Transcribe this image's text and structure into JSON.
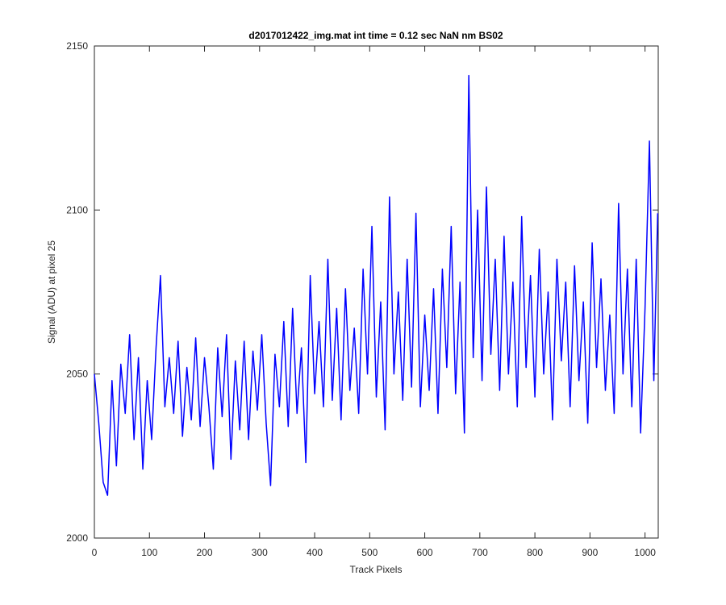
{
  "chart_data": {
    "type": "line",
    "title": "d2017012422_img.mat int time = 0.12 sec  NaN nm BS02",
    "x_label": "Track Pixels",
    "y_label": "Signal (ADU) at pixel 25",
    "x": [
      0,
      8,
      16,
      24,
      32,
      40,
      48,
      56,
      64,
      72,
      80,
      88,
      96,
      104,
      112,
      120,
      128,
      136,
      144,
      152,
      160,
      168,
      176,
      184,
      192,
      200,
      208,
      216,
      224,
      232,
      240,
      248,
      256,
      264,
      272,
      280,
      288,
      296,
      304,
      312,
      320,
      328,
      336,
      344,
      352,
      360,
      368,
      376,
      384,
      392,
      400,
      408,
      416,
      424,
      432,
      440,
      448,
      456,
      464,
      472,
      480,
      488,
      496,
      504,
      512,
      520,
      528,
      536,
      544,
      552,
      560,
      568,
      576,
      584,
      592,
      600,
      608,
      616,
      624,
      632,
      640,
      648,
      656,
      664,
      672,
      680,
      688,
      696,
      704,
      712,
      720,
      728,
      736,
      744,
      752,
      760,
      768,
      776,
      784,
      792,
      800,
      808,
      816,
      824,
      832,
      840,
      848,
      856,
      864,
      872,
      880,
      888,
      896,
      904,
      912,
      920,
      928,
      936,
      944,
      952,
      960,
      968,
      976,
      984,
      992,
      1000,
      1008,
      1016,
      1023
    ],
    "series": [
      {
        "name": "signal",
        "color": "#0000ff",
        "values": [
          2050,
          2035,
          2017,
          2013,
          2048,
          2022,
          2053,
          2038,
          2062,
          2030,
          2055,
          2021,
          2048,
          2030,
          2058,
          2080,
          2040,
          2055,
          2038,
          2060,
          2031,
          2052,
          2036,
          2061,
          2034,
          2055,
          2040,
          2021,
          2058,
          2037,
          2062,
          2024,
          2054,
          2033,
          2060,
          2030,
          2057,
          2039,
          2062,
          2035,
          2016,
          2056,
          2040,
          2066,
          2034,
          2070,
          2038,
          2058,
          2023,
          2080,
          2044,
          2066,
          2040,
          2085,
          2042,
          2070,
          2036,
          2076,
          2045,
          2064,
          2038,
          2082,
          2050,
          2095,
          2043,
          2072,
          2033,
          2104,
          2050,
          2075,
          2042,
          2085,
          2046,
          2099,
          2040,
          2068,
          2045,
          2076,
          2038,
          2082,
          2052,
          2095,
          2044,
          2078,
          2032,
          2141,
          2055,
          2100,
          2048,
          2107,
          2056,
          2085,
          2045,
          2092,
          2050,
          2078,
          2040,
          2098,
          2052,
          2080,
          2043,
          2088,
          2050,
          2075,
          2036,
          2085,
          2054,
          2078,
          2040,
          2083,
          2048,
          2072,
          2035,
          2090,
          2052,
          2079,
          2045,
          2068,
          2038,
          2102,
          2050,
          2082,
          2040,
          2085,
          2032,
          2070,
          2121,
          2048,
          2099
        ]
      }
    ],
    "xlim": [
      0,
      1024
    ],
    "xticks": [
      0,
      100,
      200,
      300,
      400,
      500,
      600,
      700,
      800,
      900,
      1000
    ],
    "ylim": [
      2000,
      2150
    ],
    "yticks": [
      2000,
      2050,
      2100,
      2150
    ]
  }
}
